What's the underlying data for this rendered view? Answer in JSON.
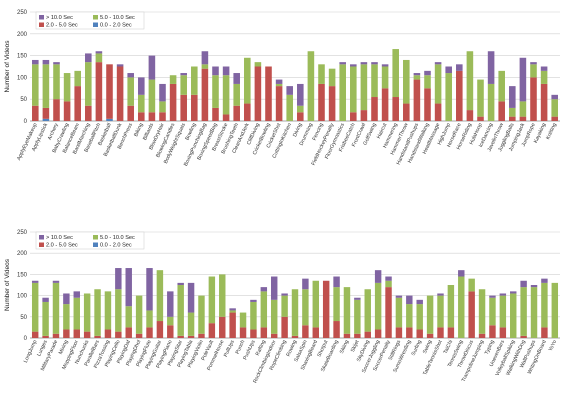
{
  "colors": {
    "gt10": "#8064a2",
    "s5to10": "#9bbb59",
    "s2to5": "#c0504d",
    "s0to2": "#4f81bd"
  },
  "chart_data": [
    {
      "type": "bar",
      "stacked": true,
      "ylabel": "Number of Videos",
      "ylim": [
        0,
        250
      ],
      "yticks": [
        0,
        50,
        100,
        150,
        200,
        250
      ],
      "grid": true,
      "legend_position": "top-left",
      "legend": [
        "> 10.0 Sec",
        "5.0 - 10.0 Sec",
        "2.0 - 5.0 Sec",
        "0.0 - 2.0 Sec"
      ],
      "categories": [
        "ApplyEyeMakeup",
        "ApplyLipstick",
        "Archery",
        "BabyCrawling",
        "BalanceBeam",
        "BandMarching",
        "BaseballPitch",
        "Basketball",
        "BasketballDunk",
        "BenchPress",
        "Biking",
        "Billiards",
        "BlowDryHair",
        "BlowingCandles",
        "BodyWeightSquats",
        "Bowling",
        "BoxingPunchingBag",
        "BoxingSpeedBag",
        "BreastStroke",
        "BrushingTeeth",
        "CleanAndJerk",
        "CliffDiving",
        "CricketBowling",
        "CricketShot",
        "CuttingInKitchen",
        "Diving",
        "Drumming",
        "Fencing",
        "FieldHockeyPenalty",
        "FloorGymnastics",
        "FrisbeeCatch",
        "FrontCrawl",
        "GolfSwing",
        "Haircut",
        "Hammering",
        "HammerThrow",
        "HandstandPushups",
        "HandstandWalking",
        "HeadMassage",
        "HighJump",
        "HorseRace",
        "HorseRiding",
        "HulaHoop",
        "IceDancing",
        "JavelinThrow",
        "JugglingBalls",
        "JumpingJack",
        "JumpRope",
        "Kayaking",
        "Knitting"
      ],
      "series": [
        {
          "name": "> 10.0 Sec",
          "values": [
            10,
            10,
            5,
            0,
            0,
            20,
            5,
            0,
            5,
            10,
            40,
            55,
            40,
            0,
            5,
            0,
            30,
            20,
            20,
            25,
            0,
            0,
            0,
            10,
            20,
            50,
            0,
            0,
            0,
            5,
            5,
            5,
            5,
            5,
            0,
            0,
            5,
            10,
            5,
            15,
            15,
            0,
            0,
            75,
            0,
            50,
            100,
            5,
            10,
            10
          ]
        },
        {
          "name": "5.0 - 10.0 Sec",
          "values": [
            95,
            100,
            80,
            65,
            35,
            100,
            20,
            0,
            0,
            65,
            40,
            75,
            25,
            20,
            45,
            65,
            10,
            75,
            90,
            50,
            105,
            10,
            0,
            5,
            60,
            15,
            160,
            45,
            40,
            130,
            105,
            105,
            75,
            50,
            110,
            100,
            10,
            30,
            90,
            110,
            0,
            135,
            85,
            85,
            70,
            20,
            35,
            30,
            30,
            40
          ]
        },
        {
          "name": "2.0 - 5.0 Sec",
          "values": [
            35,
            25,
            50,
            45,
            80,
            35,
            135,
            125,
            125,
            35,
            20,
            20,
            20,
            85,
            60,
            60,
            120,
            30,
            15,
            35,
            40,
            125,
            125,
            80,
            0,
            20,
            0,
            85,
            80,
            0,
            20,
            25,
            55,
            75,
            55,
            40,
            95,
            75,
            40,
            0,
            115,
            25,
            10,
            0,
            45,
            10,
            10,
            100,
            85,
            10
          ]
        },
        {
          "name": "0.0 - 2.0 Sec",
          "values": [
            0,
            5,
            0,
            0,
            0,
            0,
            0,
            5,
            0,
            0,
            0,
            0,
            0,
            0,
            0,
            0,
            0,
            0,
            0,
            0,
            0,
            0,
            0,
            0,
            0,
            0,
            0,
            0,
            0,
            0,
            0,
            0,
            0,
            0,
            0,
            0,
            0,
            0,
            0,
            0,
            0,
            0,
            0,
            0,
            0,
            0,
            0,
            0,
            0,
            0
          ]
        }
      ]
    },
    {
      "type": "bar",
      "stacked": true,
      "ylabel": "Number of Videos",
      "ylim": [
        0,
        250
      ],
      "yticks": [
        0,
        50,
        100,
        150,
        200,
        250
      ],
      "grid": true,
      "legend_position": "top-left",
      "legend": [
        "> 10.0 Sec",
        "5.0 - 10.0 Sec",
        "2.0 - 5.0 Sec",
        "0.0 - 2.0 Sec"
      ],
      "categories": [
        "LongJump",
        "Lunges",
        "MilitaryParade",
        "Mixing",
        "MoppingFloor",
        "Nunchucks",
        "ParallelBars",
        "PizzaTossing",
        "PlayingCello",
        "PlayingDaf",
        "PlayingDhol",
        "PlayingFlute",
        "PlayingGuitar",
        "PlayingPiano",
        "PlayingSitar",
        "PlayingTabla",
        "PlayingViolin",
        "PoleVault",
        "PommelHorse",
        "PullUps",
        "Punch",
        "PushUps",
        "Rafting",
        "RockClimbingIndoor",
        "RopeClimbing",
        "Rowing",
        "SalsaSpin",
        "ShavingBeard",
        "Shotput",
        "SkateBoarding",
        "Skiing",
        "Skijet",
        "SkyDiving",
        "SoccerJuggling",
        "SoccerPenalty",
        "StillRings",
        "SumoWrestling",
        "Surfing",
        "Swing",
        "TableTennisShot",
        "TaiChi",
        "TennisSwing",
        "ThrowDiscus",
        "TrampolineJumping",
        "Typing",
        "UnevenBars",
        "VolleyballSpiking",
        "WalkingWithDog",
        "WallPushups",
        "WritingOnBoard",
        "YoYo"
      ],
      "series": [
        {
          "name": "> 10.0 Sec",
          "values": [
            5,
            10,
            5,
            25,
            15,
            0,
            0,
            0,
            50,
            90,
            0,
            100,
            0,
            60,
            5,
            70,
            0,
            0,
            0,
            5,
            0,
            5,
            10,
            55,
            5,
            0,
            25,
            0,
            0,
            25,
            0,
            5,
            0,
            30,
            10,
            5,
            20,
            10,
            0,
            5,
            0,
            15,
            0,
            0,
            5,
            5,
            5,
            15,
            5,
            10,
            0
          ]
        },
        {
          "name": "5.0 - 10.0 Sec",
          "values": [
            115,
            80,
            120,
            60,
            75,
            90,
            110,
            90,
            100,
            50,
            90,
            40,
            120,
            20,
            120,
            55,
            90,
            110,
            100,
            5,
            35,
            65,
            85,
            80,
            50,
            110,
            85,
            110,
            0,
            80,
            110,
            80,
            100,
            110,
            15,
            70,
            55,
            60,
            90,
            75,
            100,
            145,
            30,
            105,
            65,
            75,
            105,
            115,
            120,
            105,
            130
          ]
        },
        {
          "name": "2.0 - 5.0 Sec",
          "values": [
            15,
            5,
            10,
            20,
            20,
            15,
            5,
            20,
            15,
            25,
            10,
            25,
            40,
            30,
            5,
            5,
            10,
            35,
            50,
            60,
            25,
            20,
            25,
            10,
            50,
            5,
            30,
            25,
            135,
            40,
            10,
            10,
            15,
            20,
            120,
            25,
            25,
            20,
            10,
            25,
            25,
            0,
            110,
            10,
            30,
            25,
            0,
            5,
            0,
            25,
            0
          ]
        },
        {
          "name": "0.0 - 2.0 Sec",
          "values": [
            0,
            0,
            0,
            0,
            0,
            0,
            0,
            0,
            0,
            0,
            0,
            0,
            0,
            0,
            0,
            0,
            0,
            0,
            0,
            0,
            0,
            0,
            0,
            0,
            0,
            0,
            0,
            0,
            0,
            0,
            0,
            0,
            0,
            0,
            0,
            0,
            0,
            0,
            0,
            0,
            0,
            0,
            0,
            0,
            0,
            0,
            0,
            0,
            0,
            0,
            0
          ]
        }
      ]
    }
  ]
}
